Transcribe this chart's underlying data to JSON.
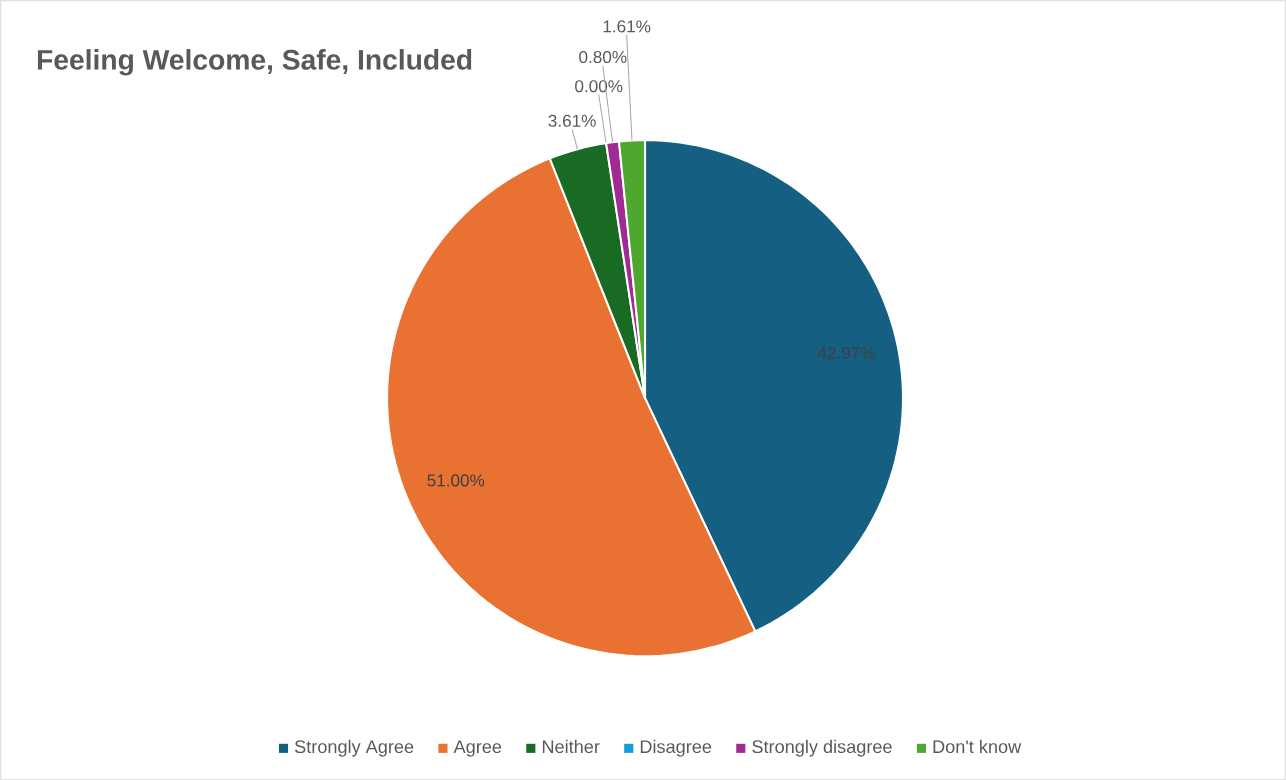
{
  "chart_data": {
    "type": "pie",
    "title": "Feeling Welcome, Safe, Included",
    "categories": [
      "Strongly Agree",
      "Agree",
      "Neither",
      "Disagree",
      "Strongly disagree",
      "Don't know"
    ],
    "values": [
      42.97,
      51.0,
      3.61,
      0.0,
      0.8,
      1.61
    ],
    "colors": [
      "#156082",
      "#e97132",
      "#196b24",
      "#0f9ed5",
      "#a02b93",
      "#4ea72e"
    ],
    "value_labels": [
      "42.97%",
      "51.00%",
      "3.61%",
      "0.00%",
      "0.80%",
      "1.61%"
    ],
    "legend": "bottom"
  }
}
